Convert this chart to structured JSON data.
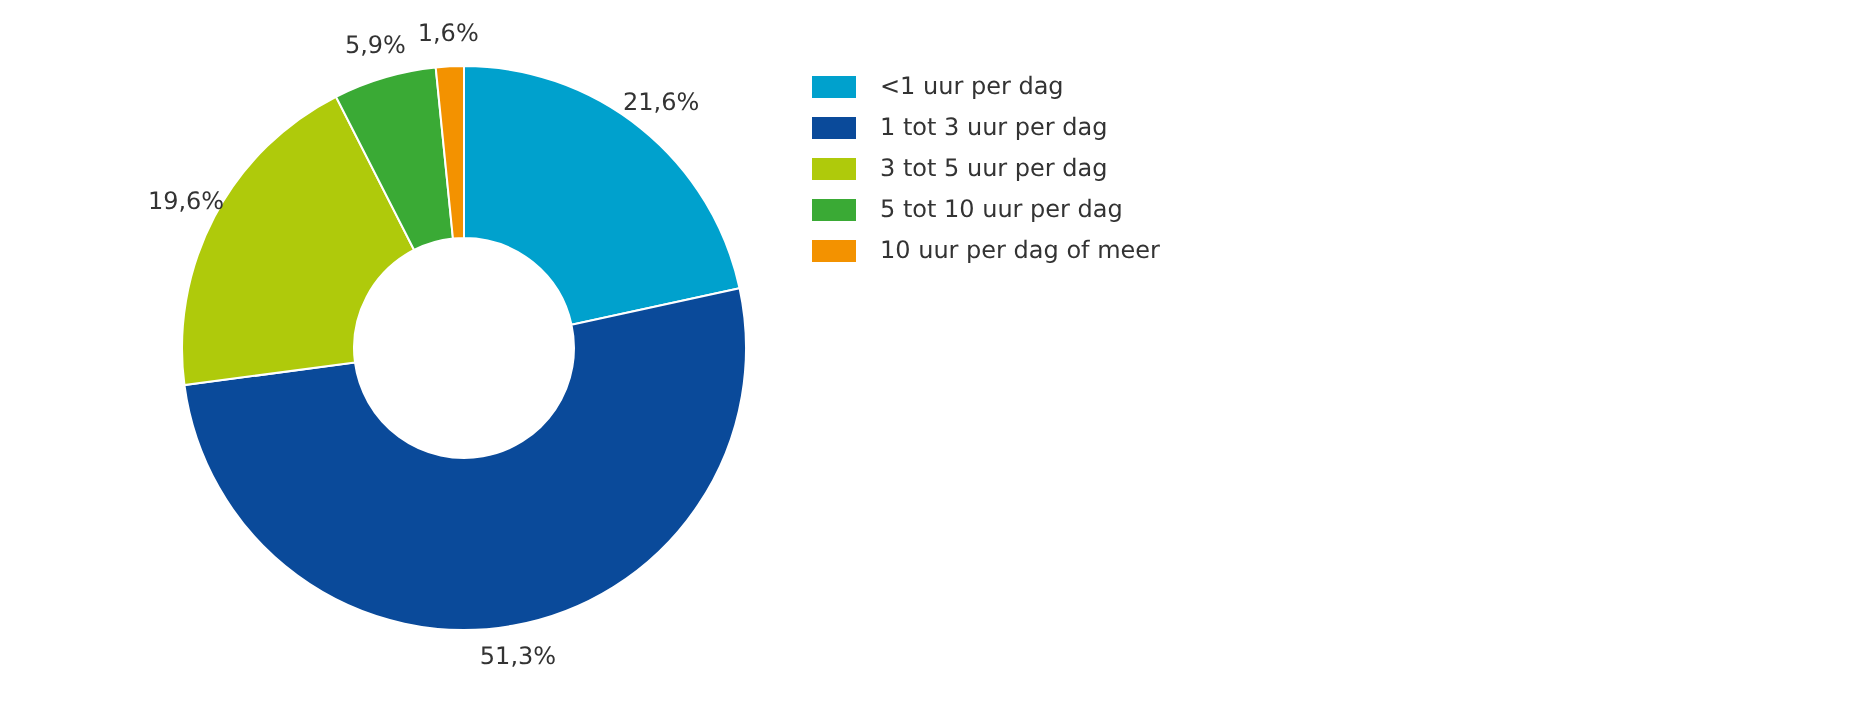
{
  "chart_data": {
    "type": "donut",
    "categories": [
      "<1 uur per dag",
      "1 tot 3 uur per dag",
      "3 tot 5 uur per dag",
      "5 tot 10 uur per dag",
      "10 uur per dag of meer"
    ],
    "values": [
      21.6,
      51.3,
      19.6,
      5.9,
      1.6
    ],
    "value_labels": [
      "21,6%",
      "51,3%",
      "19,6%",
      "5,9%",
      "1,6%"
    ],
    "colors": [
      "#00a1cd",
      "#0a4a9a",
      "#afca0b",
      "#3aaa35",
      "#f39200"
    ],
    "legend": "right"
  }
}
